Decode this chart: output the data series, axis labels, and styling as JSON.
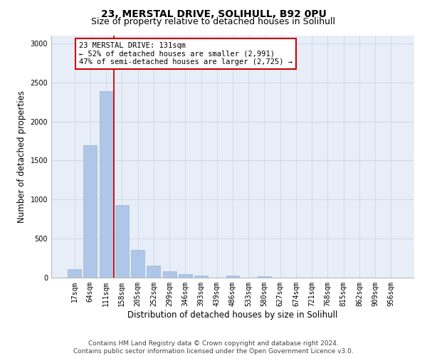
{
  "title": "23, MERSTAL DRIVE, SOLIHULL, B92 0PU",
  "subtitle": "Size of property relative to detached houses in Solihull",
  "xlabel": "Distribution of detached houses by size in Solihull",
  "ylabel": "Number of detached properties",
  "categories": [
    "17sqm",
    "64sqm",
    "111sqm",
    "158sqm",
    "205sqm",
    "252sqm",
    "299sqm",
    "346sqm",
    "393sqm",
    "439sqm",
    "486sqm",
    "533sqm",
    "580sqm",
    "627sqm",
    "674sqm",
    "721sqm",
    "768sqm",
    "815sqm",
    "862sqm",
    "909sqm",
    "956sqm"
  ],
  "values": [
    110,
    1700,
    2390,
    930,
    360,
    155,
    80,
    50,
    30,
    0,
    30,
    0,
    20,
    0,
    0,
    0,
    0,
    0,
    0,
    0,
    0
  ],
  "bar_color": "#aec6e8",
  "bar_edgecolor": "#9ab8d8",
  "property_line_color": "#cc0000",
  "annotation_line1": "23 MERSTAL DRIVE: 131sqm",
  "annotation_line2": "← 52% of detached houses are smaller (2,991)",
  "annotation_line3": "47% of semi-detached houses are larger (2,725) →",
  "annotation_box_color": "#cc0000",
  "annotation_bg": "#ffffff",
  "ylim": [
    0,
    3100
  ],
  "yticks": [
    0,
    500,
    1000,
    1500,
    2000,
    2500,
    3000
  ],
  "grid_color": "#d0d8e8",
  "background_color": "#e8eef8",
  "footer": "Contains HM Land Registry data © Crown copyright and database right 2024.\nContains public sector information licensed under the Open Government Licence v3.0.",
  "title_fontsize": 10,
  "subtitle_fontsize": 9,
  "xlabel_fontsize": 8.5,
  "ylabel_fontsize": 8.5,
  "tick_fontsize": 7,
  "footer_fontsize": 6.5,
  "annotation_fontsize": 7.5
}
